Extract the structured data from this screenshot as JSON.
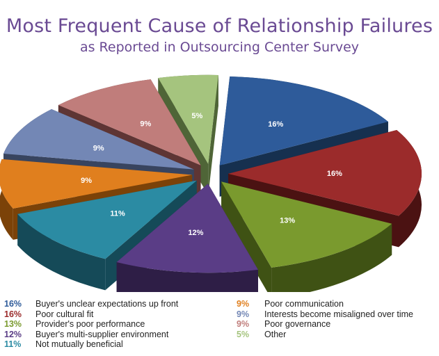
{
  "title": "Most Frequent Cause of Relationship Failures",
  "subtitle": "as Reported in Outsourcing Center Survey",
  "chart_data": {
    "type": "pie",
    "style": "exploded 3d",
    "title": "Most Frequent Cause of Relationship Failures",
    "subtitle": "as Reported in Outsourcing Center Survey",
    "legend_position": "bottom",
    "slices": [
      {
        "label": "Buyer's unclear expectations up front",
        "value": 16,
        "pct_label": "16%",
        "color": "#2e5b9a",
        "side": "#16304f"
      },
      {
        "label": "Poor cultural fit",
        "value": 16,
        "pct_label": "16%",
        "color": "#9b2b2b",
        "side": "#4b1212"
      },
      {
        "label": "Provider's poor performance",
        "value": 13,
        "pct_label": "13%",
        "color": "#7a9a2e",
        "side": "#3f5214"
      },
      {
        "label": "Buyer's multi-supplier environment",
        "value": 12,
        "pct_label": "12%",
        "color": "#5a3d86",
        "side": "#2e1e46"
      },
      {
        "label": "Not mutually beneficial",
        "value": 11,
        "pct_label": "11%",
        "color": "#2b8ba3",
        "side": "#154a58"
      },
      {
        "label": "Poor communication",
        "value": 9,
        "pct_label": "9%",
        "color": "#e07f1e",
        "side": "#7b4208"
      },
      {
        "label": "Interests become misaligned over time",
        "value": 9,
        "pct_label": "9%",
        "color": "#7387b5",
        "side": "#38445f"
      },
      {
        "label": "Poor governance",
        "value": 9,
        "pct_label": "9%",
        "color": "#c07d7b",
        "side": "#5e3534"
      },
      {
        "label": "Other",
        "value": 5,
        "pct_label": "5%",
        "color": "#a5c47e",
        "side": "#4f6537"
      }
    ]
  },
  "legend": {
    "left": [
      {
        "pct": "16%",
        "label": "Buyer's unclear expectations up front",
        "color": "#2e5b9a"
      },
      {
        "pct": "16%",
        "label": "Poor cultural fit",
        "color": "#9b2b2b"
      },
      {
        "pct": "13%",
        "label": "Provider's poor performance",
        "color": "#7a9a2e"
      },
      {
        "pct": "12%",
        "label": "Buyer's multi-supplier environment",
        "color": "#5a3d86"
      },
      {
        "pct": "11%",
        "label": "Not mutually beneficial",
        "color": "#2b8ba3"
      }
    ],
    "right": [
      {
        "pct": "9%",
        "label": "Poor communication",
        "color": "#e07f1e"
      },
      {
        "pct": "9%",
        "label": "Interests become misaligned over time",
        "color": "#7387b5"
      },
      {
        "pct": "9%",
        "label": "Poor governance",
        "color": "#c07d7b"
      },
      {
        "pct": "5%",
        "label": "Other",
        "color": "#a5c47e"
      }
    ]
  }
}
